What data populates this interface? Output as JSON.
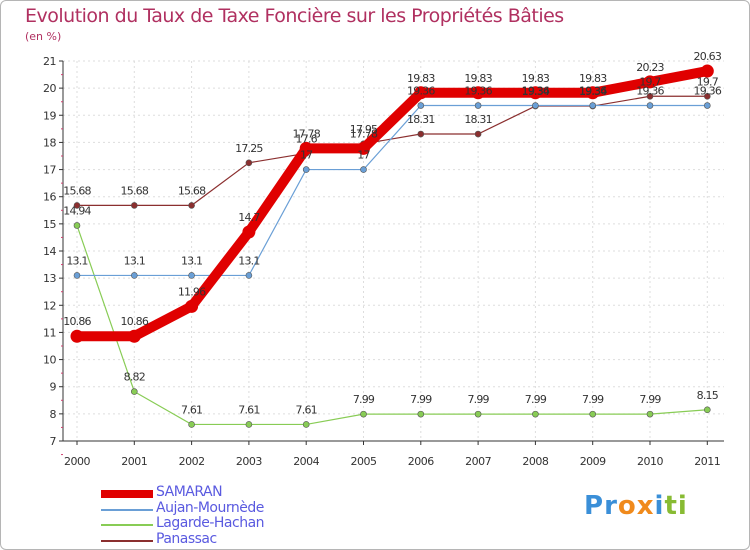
{
  "chart_data": {
    "type": "line",
    "title": "Evolution du Taux de Taxe Foncière sur les Propriétés Bâties",
    "ylabel": "(en %)",
    "xlabel": "",
    "ylim": [
      7,
      21
    ],
    "yticks": [
      7,
      8,
      9,
      10,
      11,
      12,
      13,
      14,
      15,
      16,
      17,
      18,
      19,
      20,
      21
    ],
    "categories": [
      "2000",
      "2001",
      "2002",
      "2003",
      "2004",
      "2005",
      "2006",
      "2007",
      "2008",
      "2009",
      "2010",
      "2011"
    ],
    "grid": true,
    "series": [
      {
        "name": "SAMARAN",
        "color": "#e00000",
        "values": [
          10.86,
          10.86,
          11.96,
          14.7,
          17.78,
          17.78,
          19.83,
          19.83,
          19.83,
          19.83,
          20.23,
          20.63
        ],
        "labels": [
          "10.86",
          "10.86",
          "11.96",
          "14.7",
          "17.78",
          "17.78",
          "19.83",
          "19.83",
          "19.83",
          "19.83",
          "20.23",
          "20.63"
        ]
      },
      {
        "name": "Aujan-Mournède",
        "color": "#6a9fd6",
        "values": [
          13.1,
          13.1,
          13.1,
          13.1,
          17,
          17,
          19.36,
          19.36,
          19.36,
          19.36,
          19.36,
          19.36
        ],
        "labels": [
          "13.1",
          "13.1",
          "13.1",
          "13.1",
          "17",
          "17",
          "19.36",
          "19.36",
          "19.36",
          "19.36",
          "19.36",
          "19.36"
        ]
      },
      {
        "name": "Lagarde-Hachan",
        "color": "#88cc55",
        "values": [
          14.94,
          8.82,
          7.61,
          7.61,
          7.61,
          7.99,
          7.99,
          7.99,
          7.99,
          7.99,
          7.99,
          8.15
        ],
        "labels": [
          "14.94",
          "8.82",
          "7.61",
          "7.61",
          "7.61",
          "7.99",
          "7.99",
          "7.99",
          "7.99",
          "7.99",
          "7.99",
          "8.15"
        ]
      },
      {
        "name": "Panassac",
        "color": "#8b2f2f",
        "values": [
          15.68,
          15.68,
          15.68,
          17.25,
          17.6,
          17.95,
          18.31,
          18.31,
          19.34,
          19.34,
          19.7,
          19.7
        ],
        "labels": [
          "15.68",
          "15.68",
          "15.68",
          "17.25",
          "17.6",
          "17.95",
          "18.31",
          "18.31",
          "19.34",
          "19.34",
          "19.7",
          "19.7"
        ]
      }
    ]
  },
  "legend": {
    "items": [
      {
        "name": "SAMARAN",
        "color": "#e00000"
      },
      {
        "name": "Aujan-Mournède",
        "color": "#6a9fd6"
      },
      {
        "name": "Lagarde-Hachan",
        "color": "#88cc55"
      },
      {
        "name": "Panassac",
        "color": "#8b2f2f"
      }
    ]
  },
  "logo": {
    "text": "Proxiti",
    "letters": [
      {
        "ch": "P",
        "color": "#3a8fd8"
      },
      {
        "ch": "r",
        "color": "#3a8fd8"
      },
      {
        "ch": "o",
        "color": "#f08a1c"
      },
      {
        "ch": "x",
        "color": "#f08a1c"
      },
      {
        "ch": "i",
        "color": "#3a8fd8"
      },
      {
        "ch": "t",
        "color": "#88bb33"
      },
      {
        "ch": "i",
        "color": "#88bb33"
      }
    ]
  }
}
